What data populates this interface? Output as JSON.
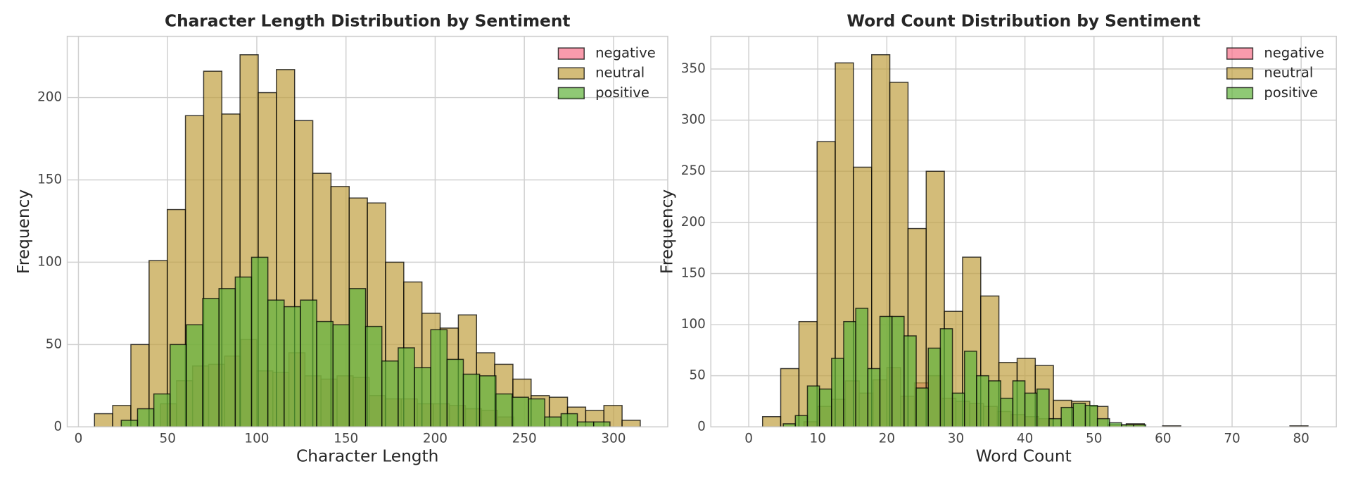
{
  "chart_data": [
    {
      "type": "histogram",
      "title": "Character Length Distribution by Sentiment",
      "xlabel": "Character Length",
      "ylabel": "Frequency",
      "xlim": [
        -6.3,
        330.4
      ],
      "ylim": [
        0,
        237.2
      ],
      "xticks": [
        0,
        50,
        100,
        150,
        200,
        250,
        300
      ],
      "yticks": [
        0,
        50,
        100,
        150,
        200
      ],
      "grid": true,
      "legend": "upper right",
      "alpha": 0.7,
      "series": [
        {
          "name": "negative",
          "color": "#f77189",
          "bins": [
            46,
            55,
            64,
            73,
            82,
            91,
            100,
            109,
            118,
            127,
            136,
            145,
            154,
            163,
            172,
            181,
            190,
            199,
            208,
            217,
            226,
            235,
            244
          ],
          "values": [
            14,
            28,
            37,
            38,
            43,
            53,
            34,
            33,
            45,
            31,
            29,
            31,
            30,
            19,
            17,
            17,
            14,
            14,
            13,
            11,
            10,
            6
          ]
        },
        {
          "name": "neutral",
          "color": "#c0a040",
          "bins": [
            9,
            19.2,
            29.4,
            39.6,
            49.8,
            60,
            70.2,
            80.4,
            90.6,
            100.8,
            111,
            121.2,
            131.4,
            141.6,
            151.8,
            162,
            172.2,
            182.4,
            192.6,
            202.8,
            213,
            223.2,
            233.4,
            243.6,
            253.8,
            264,
            274.2,
            284.4,
            294.6,
            304.8,
            315
          ],
          "values": [
            8,
            13,
            50,
            101,
            132,
            189,
            216,
            190,
            226,
            203,
            217,
            186,
            154,
            146,
            139,
            136,
            100,
            88,
            69,
            60,
            68,
            45,
            38,
            29,
            19,
            18,
            12,
            10,
            13,
            4
          ]
        },
        {
          "name": "positive",
          "color": "#5fb23a",
          "bins": [
            24,
            33.13,
            42.27,
            51.4,
            60.53,
            69.67,
            78.8,
            87.93,
            97.07,
            106.2,
            115.33,
            124.47,
            133.6,
            142.73,
            151.87,
            161,
            170.13,
            179.27,
            188.4,
            197.53,
            206.67,
            215.8,
            224.93,
            234.07,
            243.2,
            252.33,
            261.47,
            270.6,
            279.73,
            288.87,
            298
          ],
          "values": [
            4,
            11,
            20,
            50,
            62,
            78,
            84,
            91,
            103,
            77,
            73,
            77,
            64,
            62,
            84,
            61,
            40,
            48,
            36,
            59,
            41,
            32,
            31,
            20,
            18,
            17,
            6,
            8,
            3,
            3
          ]
        }
      ]
    },
    {
      "type": "histogram",
      "title": "Word Count Distribution by Sentiment",
      "xlabel": "Word Count",
      "ylabel": "Frequency",
      "xlim": [
        -5.49,
        85.1
      ],
      "ylim": [
        0,
        382
      ],
      "xticks": [
        0,
        10,
        20,
        30,
        40,
        50,
        60,
        70,
        80
      ],
      "yticks": [
        0,
        50,
        100,
        150,
        200,
        250,
        300,
        350
      ],
      "grid": true,
      "legend": "upper right",
      "alpha": 0.7,
      "series": [
        {
          "name": "negative",
          "color": "#f77189",
          "bins": [
            8,
            10,
            12,
            14,
            16,
            18,
            20,
            22,
            24,
            26,
            28,
            30,
            32,
            34,
            36,
            38,
            40,
            42,
            44
          ],
          "values": [
            5,
            20,
            27,
            45,
            33,
            46,
            58,
            30,
            43,
            50,
            28,
            25,
            23,
            20,
            15,
            12,
            10,
            8
          ]
        },
        {
          "name": "neutral",
          "color": "#c0a040",
          "bins": [
            2,
            4.63,
            7.27,
            9.9,
            12.53,
            15.17,
            17.8,
            20.43,
            23.07,
            25.7,
            28.33,
            30.97,
            33.6,
            36.23,
            38.87,
            41.5,
            44.13,
            46.77,
            49.4,
            52.03,
            54.67,
            57.3,
            59.93,
            62.57,
            65.2,
            67.83,
            70.47,
            73.1,
            75.73,
            78.37,
            81
          ],
          "values": [
            10,
            57,
            103,
            279,
            356,
            254,
            364,
            337,
            194,
            250,
            113,
            166,
            128,
            63,
            67,
            60,
            26,
            25,
            20,
            2,
            3,
            0,
            1,
            0,
            0,
            0,
            0,
            0,
            0,
            1
          ]
        },
        {
          "name": "positive",
          "color": "#5fb23a",
          "bins": [
            5,
            6.75,
            8.5,
            10.25,
            12,
            13.75,
            15.5,
            17.25,
            19,
            20.75,
            22.5,
            24.25,
            26,
            27.75,
            29.5,
            31.25,
            33,
            34.75,
            36.5,
            38.25,
            40,
            41.75,
            43.5,
            45.25,
            47,
            48.75,
            50.5,
            52.25,
            54,
            55.75,
            57.5
          ],
          "values": [
            3,
            11,
            40,
            37,
            67,
            103,
            116,
            57,
            108,
            108,
            89,
            38,
            77,
            96,
            33,
            74,
            50,
            45,
            28,
            45,
            33,
            37,
            8,
            19,
            23,
            21,
            8,
            4,
            2,
            2
          ]
        }
      ]
    }
  ]
}
